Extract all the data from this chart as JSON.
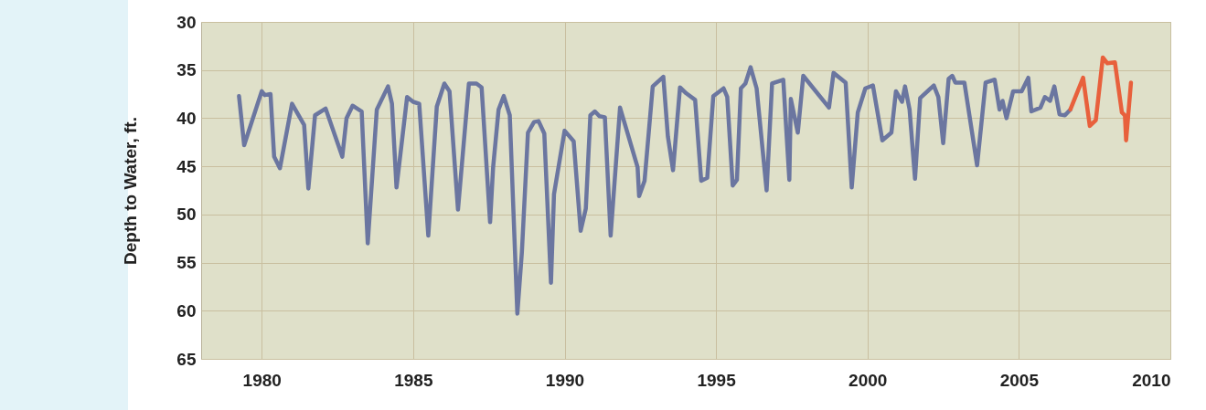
{
  "chart_data": {
    "type": "line",
    "ylabel": "Depth to Water, ft.",
    "xlim": [
      1978,
      2010
    ],
    "xticks": [
      1980,
      1985,
      1990,
      1995,
      2000,
      2005,
      2010
    ],
    "ylim": [
      65,
      30
    ],
    "yticks": [
      30,
      35,
      40,
      45,
      50,
      55,
      60,
      65
    ],
    "grid": true,
    "marker": "none",
    "line_style": "solid",
    "series": [
      {
        "color": "#6b76a0",
        "x": [
          1979.25,
          1979.42,
          1980.0,
          1980.1,
          1980.29,
          1980.41,
          1980.6,
          1981.0,
          1981.4,
          1981.54,
          1981.76,
          1982.11,
          1982.66,
          1982.8,
          1983.0,
          1983.3,
          1983.5,
          1983.8,
          1984.17,
          1984.3,
          1984.45,
          1984.8,
          1985.0,
          1985.2,
          1985.5,
          1985.78,
          1986.03,
          1986.2,
          1986.48,
          1986.84,
          1987.09,
          1987.26,
          1987.54,
          1987.64,
          1987.82,
          1987.99,
          1988.19,
          1988.44,
          1988.59,
          1988.79,
          1988.99,
          1989.14,
          1989.33,
          1989.55,
          1989.65,
          1990.0,
          1990.3,
          1990.53,
          1990.7,
          1990.85,
          1991.0,
          1991.15,
          1991.33,
          1991.52,
          1991.83,
          1992.41,
          1992.46,
          1992.64,
          1992.91,
          1993.26,
          1993.41,
          1993.58,
          1993.81,
          1994.01,
          1994.31,
          1994.51,
          1994.71,
          1994.91,
          1995.25,
          1995.37,
          1995.55,
          1995.69,
          1995.82,
          1995.97,
          1996.14,
          1996.34,
          1996.67,
          1996.85,
          1997.22,
          1997.42,
          1997.47,
          1997.7,
          1997.88,
          1998.73,
          1998.88,
          1999.28,
          1999.48,
          1999.68,
          1999.93,
          2000.18,
          2000.49,
          2000.79,
          2000.94,
          2001.14,
          2001.24,
          2001.39,
          2001.57,
          2001.74,
          2002.19,
          2002.34,
          2002.5,
          2002.68,
          2002.8,
          2002.9,
          2003.2,
          2003.62,
          2003.9,
          2004.2,
          2004.36,
          2004.46,
          2004.59,
          2004.81,
          2005.09,
          2005.31,
          2005.41,
          2005.71,
          2005.86,
          2006.03,
          2006.17,
          2006.34,
          2006.52,
          2006.7
        ],
        "values": [
          37.7,
          42.8,
          37.2,
          37.6,
          37.5,
          44.0,
          45.2,
          38.5,
          40.7,
          47.3,
          39.7,
          39.0,
          44.0,
          40.0,
          38.7,
          39.3,
          53.0,
          39.1,
          36.7,
          38.5,
          47.2,
          37.8,
          38.3,
          38.5,
          52.2,
          38.8,
          36.4,
          37.2,
          49.5,
          36.4,
          36.4,
          36.8,
          50.8,
          45.1,
          39.1,
          37.7,
          39.7,
          60.3,
          53.9,
          41.5,
          40.4,
          40.3,
          41.6,
          57.1,
          47.9,
          41.3,
          42.4,
          51.7,
          49.4,
          39.7,
          39.3,
          39.8,
          39.9,
          52.2,
          38.9,
          45.1,
          48.1,
          46.5,
          36.7,
          35.7,
          41.9,
          45.4,
          36.8,
          37.4,
          38.1,
          46.5,
          46.2,
          37.7,
          36.9,
          37.8,
          47.0,
          46.4,
          36.9,
          36.4,
          34.7,
          36.9,
          47.5,
          36.4,
          36.0,
          46.4,
          38.0,
          41.5,
          35.6,
          38.9,
          35.3,
          36.3,
          47.2,
          39.4,
          36.9,
          36.6,
          42.3,
          41.5,
          37.2,
          38.3,
          36.7,
          39.1,
          46.3,
          37.9,
          36.6,
          37.8,
          42.6,
          35.9,
          35.6,
          36.3,
          36.3,
          44.9,
          36.3,
          36.0,
          39.1,
          38.2,
          40.0,
          37.2,
          37.2,
          35.8,
          39.3,
          38.9,
          37.8,
          38.2,
          36.7,
          39.6,
          39.7,
          39.1
        ]
      },
      {
        "color": "#e8603c",
        "x": [
          2006.7,
          2007.12,
          2007.34,
          2007.54,
          2007.77,
          2007.92,
          2008.17,
          2008.4,
          2008.5,
          2008.54,
          2008.7
        ],
        "values": [
          39.1,
          35.8,
          40.8,
          40.2,
          33.7,
          34.3,
          34.2,
          39.4,
          39.7,
          42.3,
          36.3
        ]
      }
    ]
  }
}
